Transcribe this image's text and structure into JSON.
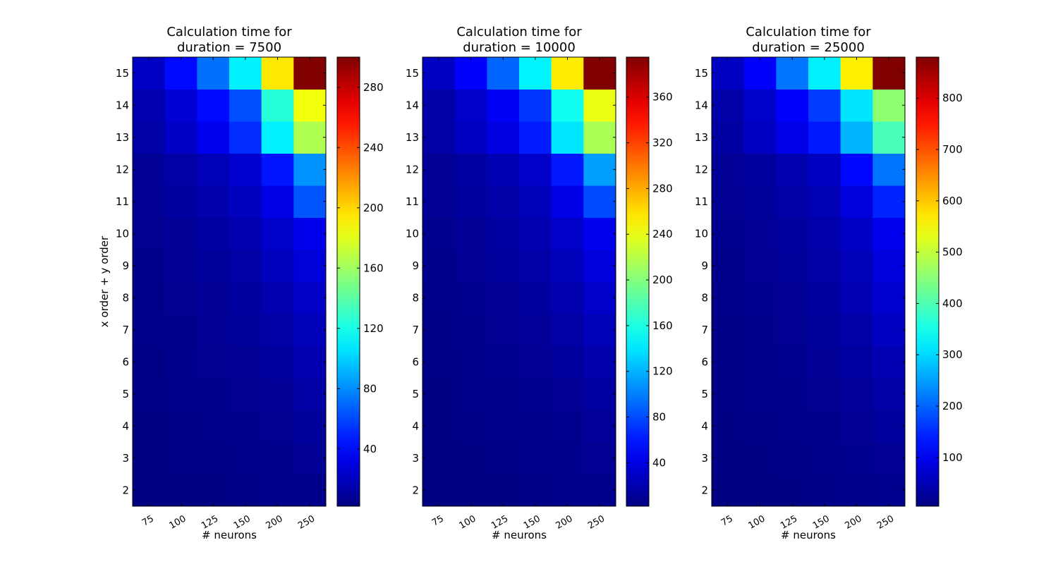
{
  "chart_data": [
    {
      "type": "heatmap",
      "title": "Calculation time for\nduration = 7500",
      "xlabel": "# neurons",
      "ylabel": "x order + y order",
      "x_ticks": [
        "75",
        "100",
        "125",
        "150",
        "200",
        "250"
      ],
      "y_ticks": [
        "2",
        "3",
        "4",
        "5",
        "6",
        "7",
        "8",
        "9",
        "10",
        "11",
        "12",
        "13",
        "14",
        "15"
      ],
      "colormap": "jet",
      "vmin": 2,
      "vmax": 300,
      "colorbar_ticks": [
        "40",
        "80",
        "120",
        "160",
        "200",
        "240",
        "280"
      ],
      "values": [
        [
          3,
          3,
          3,
          4,
          5,
          6
        ],
        [
          3,
          4,
          4,
          5,
          6,
          8
        ],
        [
          3,
          4,
          5,
          6,
          7,
          10
        ],
        [
          4,
          5,
          6,
          7,
          9,
          13
        ],
        [
          4,
          6,
          7,
          8,
          11,
          16
        ],
        [
          5,
          6,
          8,
          10,
          13,
          19
        ],
        [
          5,
          7,
          9,
          11,
          16,
          23
        ],
        [
          6,
          8,
          10,
          13,
          20,
          28
        ],
        [
          7,
          9,
          12,
          16,
          24,
          34
        ],
        [
          8,
          11,
          15,
          20,
          32,
          64
        ],
        [
          9,
          13,
          18,
          25,
          45,
          82
        ],
        [
          14,
          22,
          35,
          52,
          110,
          165
        ],
        [
          16,
          27,
          42,
          62,
          125,
          185
        ],
        [
          22,
          42,
          72,
          110,
          195,
          300
        ]
      ]
    },
    {
      "type": "heatmap",
      "title": "Calculation time for\nduration = 10000",
      "xlabel": "# neurons",
      "ylabel": "",
      "x_ticks": [
        "75",
        "100",
        "125",
        "150",
        "200",
        "250"
      ],
      "y_ticks": [
        "2",
        "3",
        "4",
        "5",
        "6",
        "7",
        "8",
        "9",
        "10",
        "11",
        "12",
        "13",
        "14",
        "15"
      ],
      "colormap": "jet",
      "vmin": 2,
      "vmax": 395,
      "colorbar_ticks": [
        "40",
        "80",
        "120",
        "160",
        "200",
        "240",
        "280",
        "320",
        "360"
      ],
      "values": [
        [
          3,
          3,
          4,
          5,
          6,
          7
        ],
        [
          3,
          4,
          5,
          6,
          7,
          9
        ],
        [
          4,
          5,
          6,
          7,
          8,
          12
        ],
        [
          4,
          6,
          7,
          8,
          10,
          15
        ],
        [
          5,
          6,
          8,
          10,
          13,
          19
        ],
        [
          5,
          7,
          9,
          12,
          16,
          24
        ],
        [
          6,
          8,
          11,
          14,
          20,
          30
        ],
        [
          7,
          10,
          13,
          17,
          25,
          37
        ],
        [
          8,
          11,
          15,
          20,
          30,
          45
        ],
        [
          10,
          13,
          18,
          25,
          42,
          80
        ],
        [
          11,
          15,
          22,
          30,
          60,
          112
        ],
        [
          16,
          27,
          40,
          62,
          140,
          215
        ],
        [
          17,
          30,
          47,
          72,
          155,
          240
        ],
        [
          27,
          50,
          90,
          145,
          255,
          395
        ]
      ]
    },
    {
      "type": "heatmap",
      "title": "Calculation time for\nduration = 25000",
      "xlabel": "# neurons",
      "ylabel": "",
      "x_ticks": [
        "75",
        "100",
        "125",
        "150",
        "200",
        "250"
      ],
      "y_ticks": [
        "2",
        "3",
        "4",
        "5",
        "6",
        "7",
        "8",
        "9",
        "10",
        "11",
        "12",
        "13",
        "14",
        "15"
      ],
      "colormap": "jet",
      "vmin": 5,
      "vmax": 880,
      "colorbar_ticks": [
        "100",
        "200",
        "300",
        "400",
        "500",
        "600",
        "700",
        "800"
      ],
      "values": [
        [
          8,
          9,
          10,
          12,
          15,
          18
        ],
        [
          9,
          10,
          12,
          14,
          18,
          23
        ],
        [
          10,
          12,
          14,
          17,
          22,
          30
        ],
        [
          11,
          14,
          17,
          20,
          27,
          38
        ],
        [
          12,
          15,
          19,
          24,
          33,
          48
        ],
        [
          13,
          17,
          22,
          28,
          40,
          60
        ],
        [
          14,
          19,
          25,
          32,
          48,
          72
        ],
        [
          16,
          21,
          28,
          37,
          56,
          85
        ],
        [
          18,
          24,
          32,
          42,
          65,
          100
        ],
        [
          21,
          28,
          38,
          50,
          85,
          145
        ],
        [
          24,
          32,
          45,
          60,
          120,
          215
        ],
        [
          35,
          60,
          95,
          135,
          270,
          395
        ],
        [
          40,
          70,
          110,
          165,
          310,
          455
        ],
        [
          60,
          110,
          215,
          320,
          565,
          880
        ]
      ]
    }
  ]
}
